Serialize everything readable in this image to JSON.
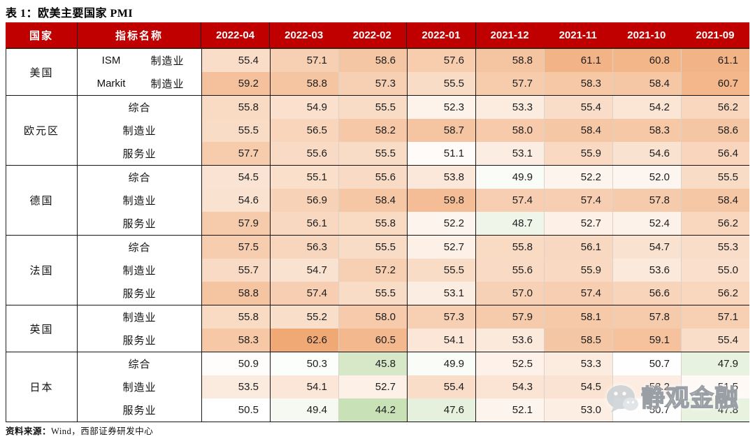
{
  "chart_data": {
    "type": "table",
    "title": "表 1：欧美主要国家 PMI",
    "col_headers": {
      "country": "国家",
      "indicator": "指标名称"
    },
    "columns": [
      "2022-04",
      "2022-03",
      "2022-02",
      "2022-01",
      "2021-12",
      "2021-11",
      "2021-10",
      "2021-09"
    ],
    "groups": [
      {
        "country": "美国",
        "rows": [
          {
            "prefix": "ISM",
            "indicator": "制造业",
            "values": [
              55.4,
              57.1,
              58.6,
              57.6,
              58.8,
              61.1,
              60.8,
              61.1
            ]
          },
          {
            "prefix": "Markit",
            "indicator": "制造业",
            "values": [
              59.2,
              58.8,
              57.3,
              55.5,
              57.7,
              58.3,
              58.4,
              60.7
            ]
          }
        ]
      },
      {
        "country": "欧元区",
        "rows": [
          {
            "indicator": "综合",
            "values": [
              55.8,
              54.9,
              55.5,
              52.3,
              53.3,
              55.4,
              54.2,
              56.2
            ]
          },
          {
            "indicator": "制造业",
            "values": [
              55.5,
              56.5,
              58.2,
              58.7,
              58.0,
              58.4,
              58.3,
              58.6
            ]
          },
          {
            "indicator": "服务业",
            "values": [
              57.7,
              55.6,
              55.5,
              51.1,
              53.1,
              55.9,
              54.6,
              56.4
            ]
          }
        ]
      },
      {
        "country": "德国",
        "rows": [
          {
            "indicator": "综合",
            "values": [
              54.5,
              55.1,
              55.6,
              53.8,
              49.9,
              52.2,
              52.0,
              55.5
            ]
          },
          {
            "indicator": "制造业",
            "values": [
              54.6,
              56.9,
              58.4,
              59.8,
              57.4,
              57.4,
              57.8,
              58.4
            ]
          },
          {
            "indicator": "服务业",
            "values": [
              57.9,
              56.1,
              55.8,
              52.2,
              48.7,
              52.7,
              52.4,
              56.2
            ]
          }
        ]
      },
      {
        "country": "法国",
        "rows": [
          {
            "indicator": "综合",
            "values": [
              57.5,
              56.3,
              55.5,
              52.7,
              55.8,
              56.1,
              54.7,
              55.3
            ]
          },
          {
            "indicator": "制造业",
            "values": [
              55.7,
              54.7,
              57.2,
              55.5,
              55.6,
              55.9,
              53.6,
              55.0
            ]
          },
          {
            "indicator": "服务业",
            "values": [
              58.8,
              57.4,
              55.5,
              53.1,
              57.0,
              57.4,
              56.6,
              56.2
            ]
          }
        ]
      },
      {
        "country": "英国",
        "rows": [
          {
            "indicator": "制造业",
            "values": [
              55.8,
              55.2,
              58.0,
              57.3,
              57.9,
              58.1,
              57.8,
              57.1
            ]
          },
          {
            "indicator": "服务业",
            "values": [
              58.3,
              62.6,
              60.5,
              54.1,
              53.6,
              58.5,
              59.1,
              55.4
            ]
          }
        ]
      },
      {
        "country": "日本",
        "rows": [
          {
            "indicator": "综合",
            "values": [
              50.9,
              50.3,
              45.8,
              49.9,
              52.5,
              53.3,
              50.7,
              47.9
            ]
          },
          {
            "indicator": "制造业",
            "values": [
              53.5,
              54.1,
              52.7,
              55.4,
              54.3,
              54.5,
              53.2,
              51.5
            ]
          },
          {
            "indicator": "服务业",
            "values": [
              50.5,
              49.4,
              44.2,
              47.6,
              52.1,
              53.0,
              50.7,
              47.8
            ]
          }
        ]
      }
    ],
    "color_scale": {
      "style": "3-color heatmap on value cells",
      "low_value": 44,
      "mid_value": 50.6,
      "high_value": 63,
      "low_color": "#C6E0B4",
      "mid_color": "#FFFFFF",
      "high_color": "#F0A670"
    },
    "layout_hints": {
      "header_bg": "#C00000",
      "header_text": "#FFFFFF",
      "strong_column_borders_before": [
        "2022-04",
        "2022-03",
        "2022-01",
        "2021-12"
      ]
    }
  },
  "source_note": {
    "prefix": "资料来源：",
    "text": "Wind，西部证券研发中心"
  },
  "watermark": {
    "icon": "wechat-icon",
    "text": "静观金融"
  }
}
